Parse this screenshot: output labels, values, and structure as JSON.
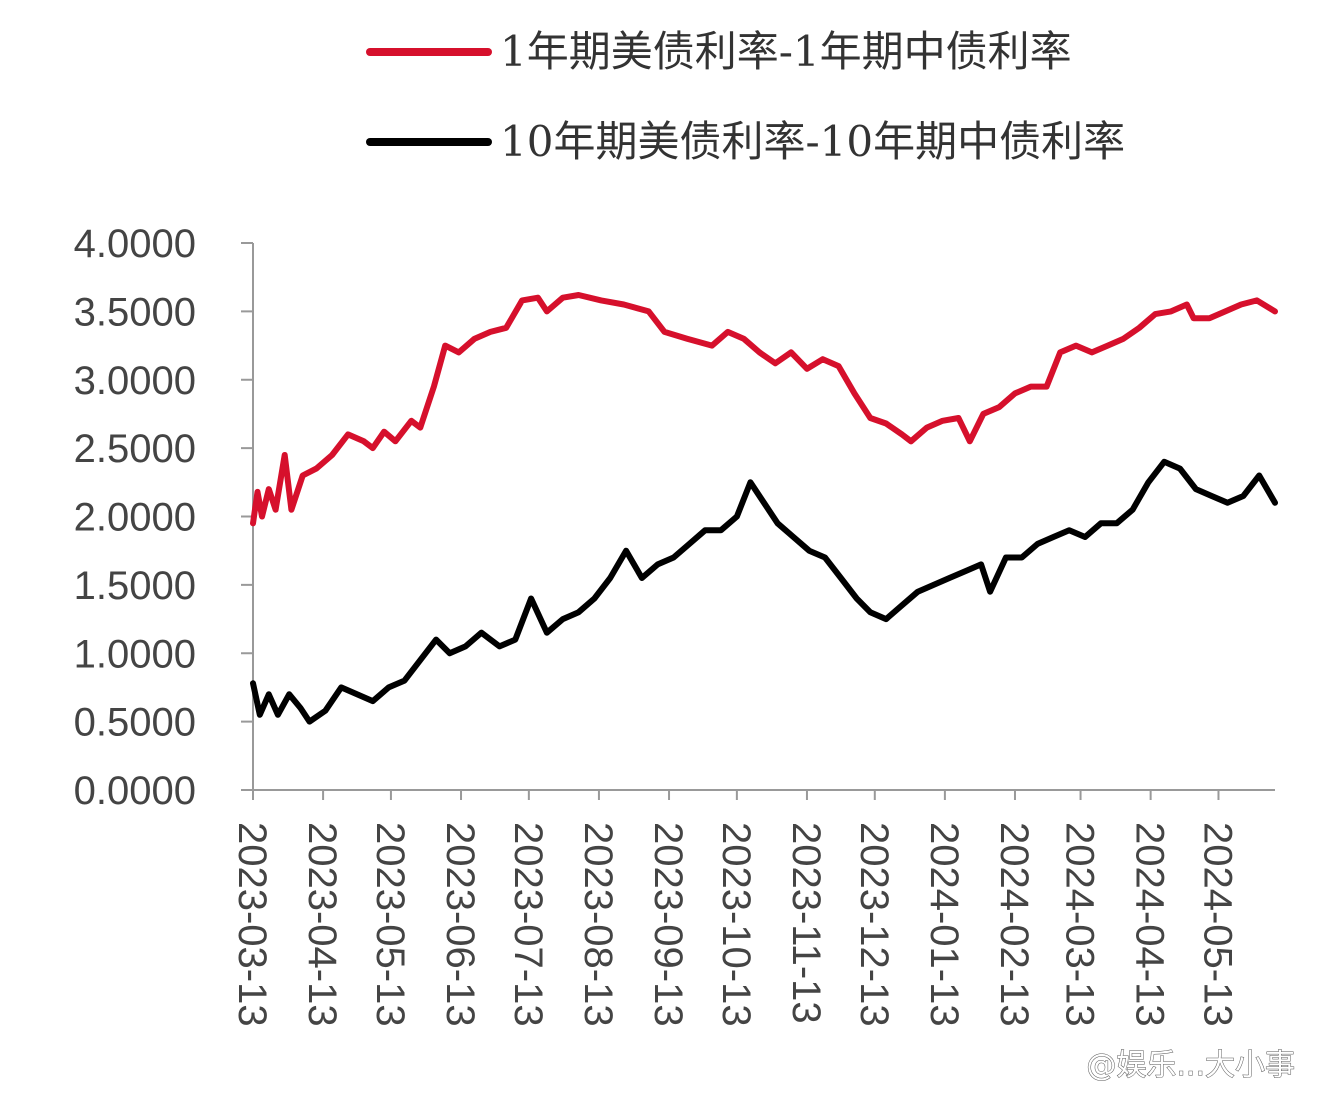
{
  "chart_data": {
    "type": "line",
    "title": "",
    "xlabel": "",
    "ylabel": "",
    "ylim": [
      0,
      4
    ],
    "yticks": [
      "0.0000",
      "0.5000",
      "1.0000",
      "1.5000",
      "2.0000",
      "2.5000",
      "3.0000",
      "3.5000",
      "4.0000"
    ],
    "xticks": [
      "2023-03-13",
      "2023-04-13",
      "2023-05-13",
      "2023-06-13",
      "2023-07-13",
      "2023-08-13",
      "2023-09-13",
      "2023-10-13",
      "2023-11-13",
      "2023-12-13",
      "2024-01-13",
      "2024-02-13",
      "2024-03-13",
      "2024-04-13",
      "2024-05-13"
    ],
    "xrange": [
      "2023-03-13",
      "2024-06-07"
    ],
    "legend_position": "top",
    "grid": false,
    "series": [
      {
        "name": "1年期美债利率-1年期中债利率",
        "color": "#d6102c",
        "points": [
          [
            "2023-03-13",
            1.95
          ],
          [
            "2023-03-15",
            2.18
          ],
          [
            "2023-03-17",
            2.0
          ],
          [
            "2023-03-20",
            2.2
          ],
          [
            "2023-03-23",
            2.05
          ],
          [
            "2023-03-27",
            2.45
          ],
          [
            "2023-03-30",
            2.05
          ],
          [
            "2023-04-04",
            2.3
          ],
          [
            "2023-04-10",
            2.35
          ],
          [
            "2023-04-17",
            2.45
          ],
          [
            "2023-04-24",
            2.6
          ],
          [
            "2023-05-01",
            2.55
          ],
          [
            "2023-05-05",
            2.5
          ],
          [
            "2023-05-10",
            2.62
          ],
          [
            "2023-05-15",
            2.55
          ],
          [
            "2023-05-22",
            2.7
          ],
          [
            "2023-05-26",
            2.65
          ],
          [
            "2023-06-01",
            2.95
          ],
          [
            "2023-06-06",
            3.25
          ],
          [
            "2023-06-12",
            3.2
          ],
          [
            "2023-06-19",
            3.3
          ],
          [
            "2023-06-26",
            3.35
          ],
          [
            "2023-07-03",
            3.38
          ],
          [
            "2023-07-10",
            3.58
          ],
          [
            "2023-07-17",
            3.6
          ],
          [
            "2023-07-21",
            3.5
          ],
          [
            "2023-07-28",
            3.6
          ],
          [
            "2023-08-04",
            3.62
          ],
          [
            "2023-08-14",
            3.58
          ],
          [
            "2023-08-24",
            3.55
          ],
          [
            "2023-09-04",
            3.5
          ],
          [
            "2023-09-11",
            3.35
          ],
          [
            "2023-09-21",
            3.3
          ],
          [
            "2023-10-02",
            3.25
          ],
          [
            "2023-10-09",
            3.35
          ],
          [
            "2023-10-16",
            3.3
          ],
          [
            "2023-10-23",
            3.2
          ],
          [
            "2023-10-30",
            3.12
          ],
          [
            "2023-11-06",
            3.2
          ],
          [
            "2023-11-13",
            3.08
          ],
          [
            "2023-11-20",
            3.15
          ],
          [
            "2023-11-27",
            3.1
          ],
          [
            "2023-12-04",
            2.9
          ],
          [
            "2023-12-11",
            2.72
          ],
          [
            "2023-12-18",
            2.68
          ],
          [
            "2023-12-25",
            2.6
          ],
          [
            "2023-12-29",
            2.55
          ],
          [
            "2024-01-05",
            2.65
          ],
          [
            "2024-01-12",
            2.7
          ],
          [
            "2024-01-19",
            2.72
          ],
          [
            "2024-01-24",
            2.55
          ],
          [
            "2024-01-30",
            2.75
          ],
          [
            "2024-02-06",
            2.8
          ],
          [
            "2024-02-13",
            2.9
          ],
          [
            "2024-02-20",
            2.95
          ],
          [
            "2024-02-27",
            2.95
          ],
          [
            "2024-03-04",
            3.2
          ],
          [
            "2024-03-11",
            3.25
          ],
          [
            "2024-03-18",
            3.2
          ],
          [
            "2024-03-25",
            3.25
          ],
          [
            "2024-04-01",
            3.3
          ],
          [
            "2024-04-08",
            3.38
          ],
          [
            "2024-04-15",
            3.48
          ],
          [
            "2024-04-22",
            3.5
          ],
          [
            "2024-04-29",
            3.55
          ],
          [
            "2024-05-02",
            3.45
          ],
          [
            "2024-05-09",
            3.45
          ],
          [
            "2024-05-16",
            3.5
          ],
          [
            "2024-05-23",
            3.55
          ],
          [
            "2024-05-30",
            3.58
          ],
          [
            "2024-06-07",
            3.5
          ]
        ]
      },
      {
        "name": "10年期美债利率-10年期中债利率",
        "color": "#000000",
        "points": [
          [
            "2023-03-13",
            0.78
          ],
          [
            "2023-03-16",
            0.55
          ],
          [
            "2023-03-20",
            0.7
          ],
          [
            "2023-03-24",
            0.55
          ],
          [
            "2023-03-29",
            0.7
          ],
          [
            "2023-04-03",
            0.6
          ],
          [
            "2023-04-07",
            0.5
          ],
          [
            "2023-04-14",
            0.58
          ],
          [
            "2023-04-21",
            0.75
          ],
          [
            "2023-04-28",
            0.7
          ],
          [
            "2023-05-05",
            0.65
          ],
          [
            "2023-05-12",
            0.75
          ],
          [
            "2023-05-19",
            0.8
          ],
          [
            "2023-05-26",
            0.95
          ],
          [
            "2023-06-02",
            1.1
          ],
          [
            "2023-06-08",
            1.0
          ],
          [
            "2023-06-15",
            1.05
          ],
          [
            "2023-06-22",
            1.15
          ],
          [
            "2023-06-30",
            1.05
          ],
          [
            "2023-07-07",
            1.1
          ],
          [
            "2023-07-14",
            1.4
          ],
          [
            "2023-07-21",
            1.15
          ],
          [
            "2023-07-28",
            1.25
          ],
          [
            "2023-08-04",
            1.3
          ],
          [
            "2023-08-11",
            1.4
          ],
          [
            "2023-08-18",
            1.55
          ],
          [
            "2023-08-25",
            1.75
          ],
          [
            "2023-09-01",
            1.55
          ],
          [
            "2023-09-08",
            1.65
          ],
          [
            "2023-09-15",
            1.7
          ],
          [
            "2023-09-22",
            1.8
          ],
          [
            "2023-09-29",
            1.9
          ],
          [
            "2023-10-06",
            1.9
          ],
          [
            "2023-10-13",
            2.0
          ],
          [
            "2023-10-19",
            2.25
          ],
          [
            "2023-10-25",
            2.1
          ],
          [
            "2023-10-31",
            1.95
          ],
          [
            "2023-11-07",
            1.85
          ],
          [
            "2023-11-14",
            1.75
          ],
          [
            "2023-11-21",
            1.7
          ],
          [
            "2023-11-28",
            1.55
          ],
          [
            "2023-12-05",
            1.4
          ],
          [
            "2023-12-11",
            1.3
          ],
          [
            "2023-12-18",
            1.25
          ],
          [
            "2023-12-25",
            1.35
          ],
          [
            "2024-01-01",
            1.45
          ],
          [
            "2024-01-08",
            1.5
          ],
          [
            "2024-01-15",
            1.55
          ],
          [
            "2024-01-22",
            1.6
          ],
          [
            "2024-01-29",
            1.65
          ],
          [
            "2024-02-02",
            1.45
          ],
          [
            "2024-02-09",
            1.7
          ],
          [
            "2024-02-16",
            1.7
          ],
          [
            "2024-02-23",
            1.8
          ],
          [
            "2024-03-01",
            1.85
          ],
          [
            "2024-03-08",
            1.9
          ],
          [
            "2024-03-15",
            1.85
          ],
          [
            "2024-03-22",
            1.95
          ],
          [
            "2024-03-29",
            1.95
          ],
          [
            "2024-04-05",
            2.05
          ],
          [
            "2024-04-12",
            2.25
          ],
          [
            "2024-04-19",
            2.4
          ],
          [
            "2024-04-26",
            2.35
          ],
          [
            "2024-05-03",
            2.2
          ],
          [
            "2024-05-10",
            2.15
          ],
          [
            "2024-05-17",
            2.1
          ],
          [
            "2024-05-24",
            2.15
          ],
          [
            "2024-05-31",
            2.3
          ],
          [
            "2024-06-07",
            2.1
          ]
        ]
      }
    ]
  },
  "watermark": "@娱乐...大小事"
}
